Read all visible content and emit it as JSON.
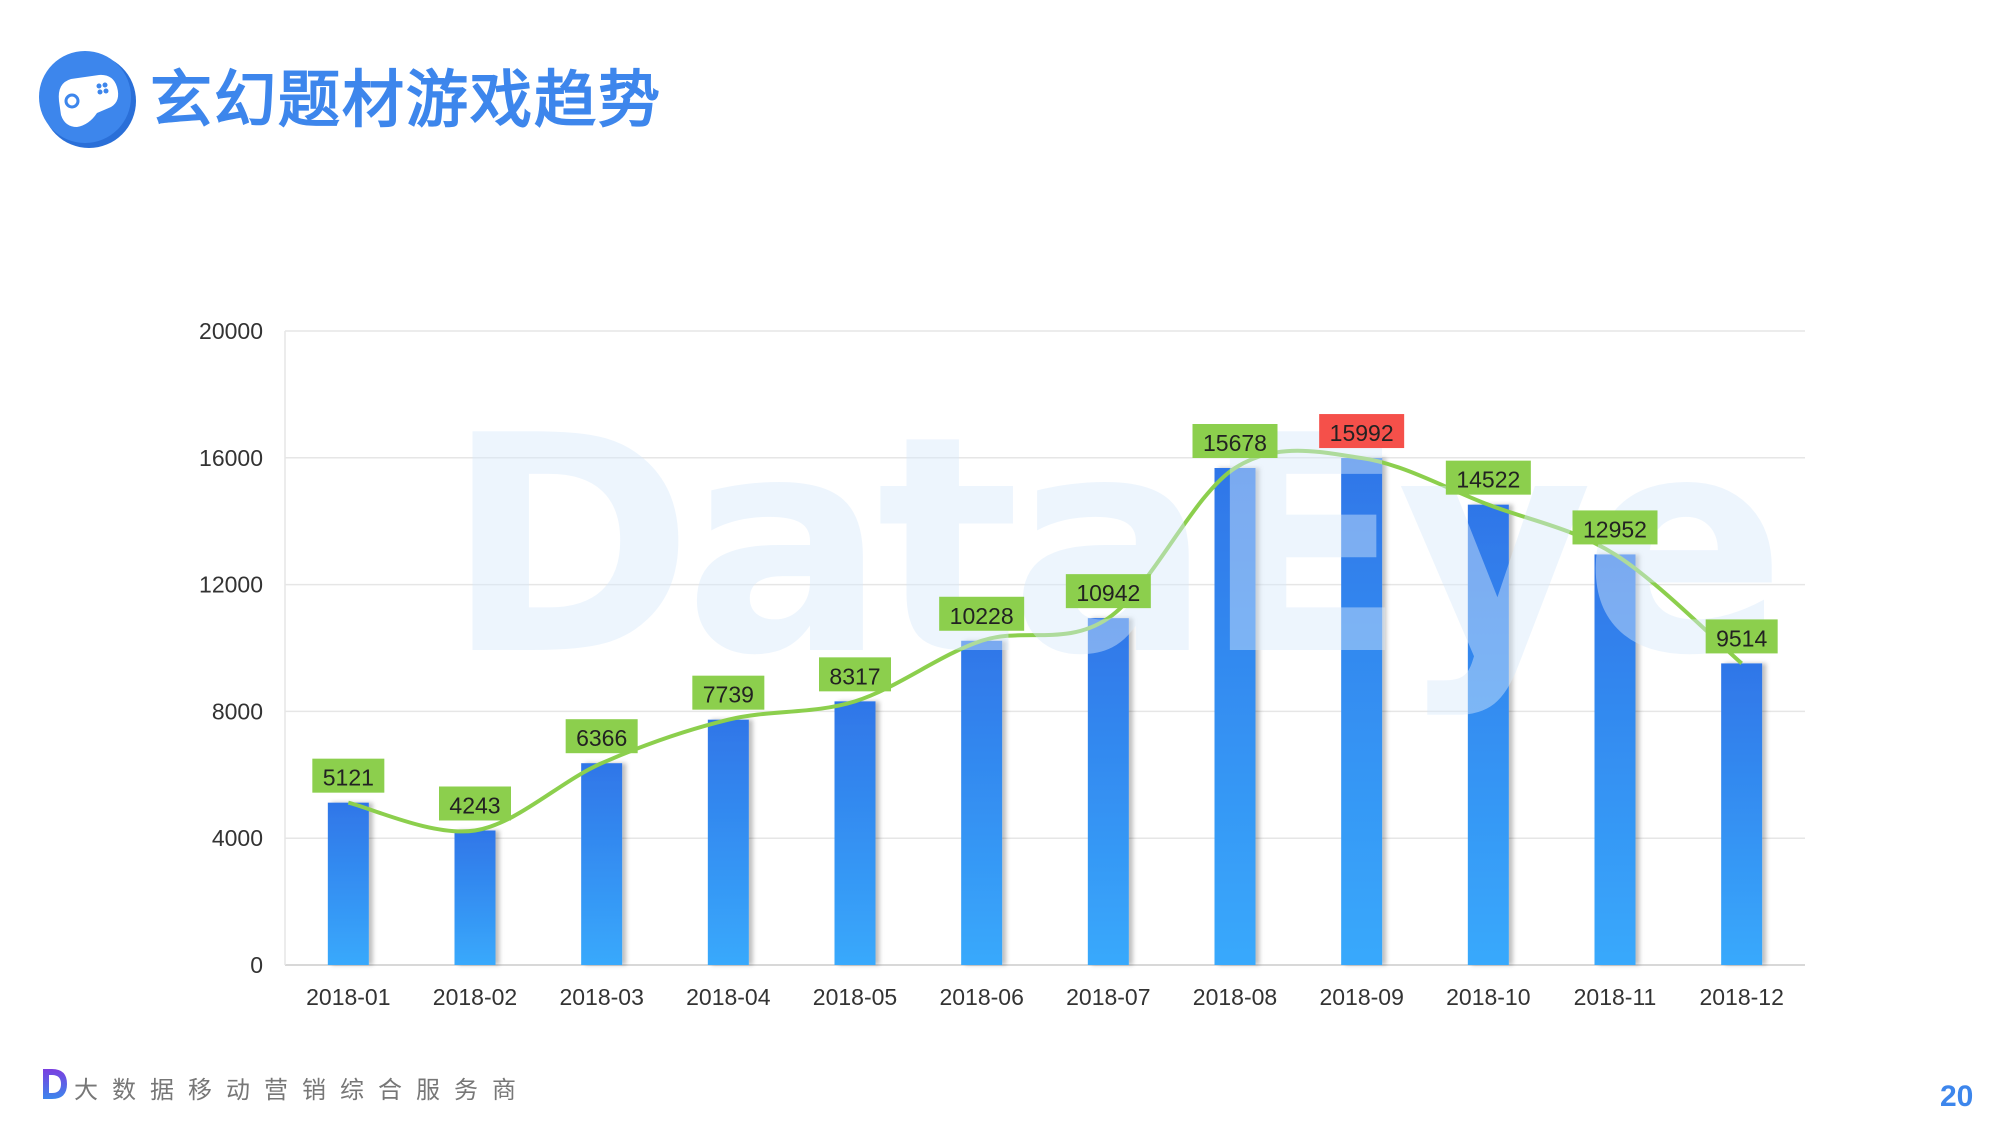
{
  "header": {
    "title": "玄幻题材游戏趋势",
    "icon": "gamepad-icon"
  },
  "watermark": "DataEye",
  "footer": {
    "tagline": "大数据移动营销综合服务商",
    "logo": "dataeye-d-logo",
    "page_number": "20"
  },
  "colors": {
    "accent": "#3d86ec",
    "bar_top": "#2f76e8",
    "bar_bottom": "#39a9fc",
    "line": "#8ccf4d",
    "label_bg": "#8ccf4d",
    "max_label_bg": "#f5504a"
  },
  "chart_data": {
    "type": "bar",
    "categories": [
      "2018-01",
      "2018-02",
      "2018-03",
      "2018-04",
      "2018-05",
      "2018-06",
      "2018-07",
      "2018-08",
      "2018-09",
      "2018-10",
      "2018-11",
      "2018-12"
    ],
    "values": [
      5121,
      4243,
      6366,
      7739,
      8317,
      10228,
      10942,
      15678,
      15992,
      14522,
      12952,
      9514
    ],
    "overlay": "smoothed line through bar values",
    "ylim": [
      0,
      20000
    ],
    "yticks": [
      0,
      4000,
      8000,
      12000,
      16000,
      20000
    ],
    "grid": true,
    "data_labels": true,
    "highlight_max": true
  }
}
